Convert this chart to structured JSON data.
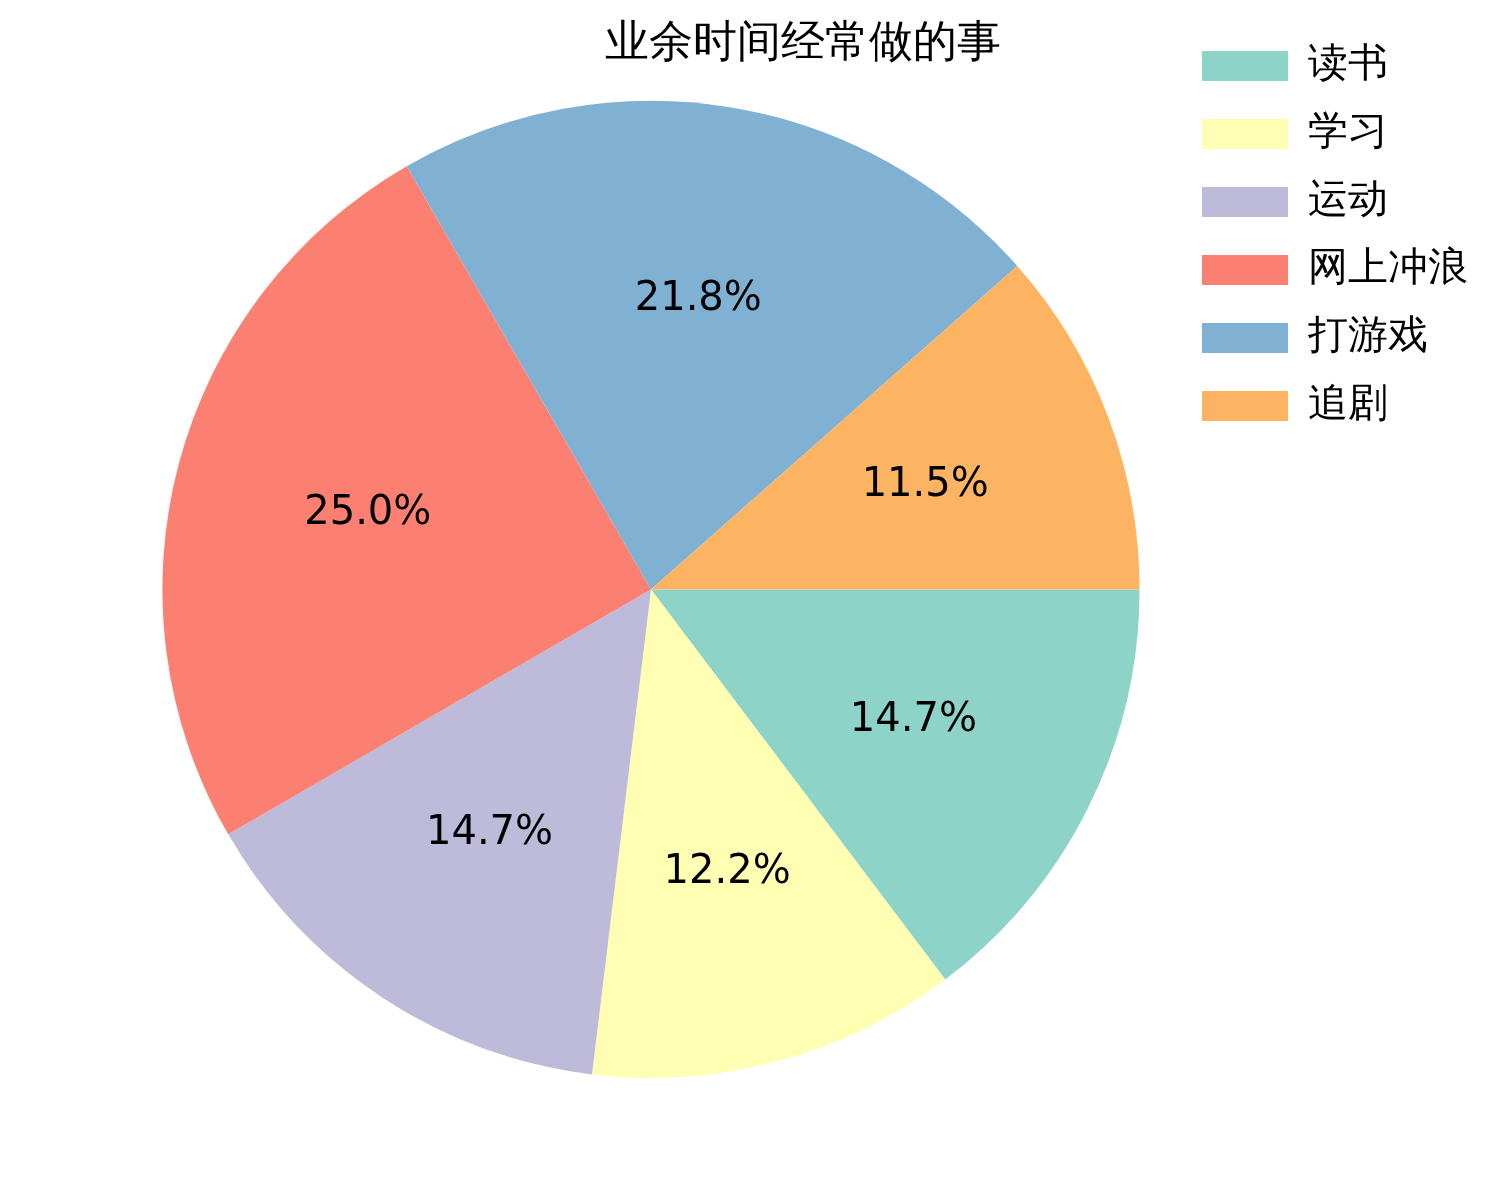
{
  "chart_data": {
    "type": "pie",
    "title": "业余时间经常做的事",
    "categories": [
      "读书",
      "学习",
      "运动",
      "网上冲浪",
      "打游戏",
      "追剧"
    ],
    "values": [
      14.7,
      12.2,
      14.7,
      25.0,
      21.8,
      11.5
    ],
    "value_labels": [
      "14.7%",
      "12.2%",
      "14.7%",
      "25.0%",
      "21.8%",
      "11.5%"
    ],
    "colors": [
      "#8dd3c7",
      "#ffffb3",
      "#bebada",
      "#fb8072",
      "#80b1d3",
      "#fdb462"
    ],
    "legend": "top right"
  }
}
